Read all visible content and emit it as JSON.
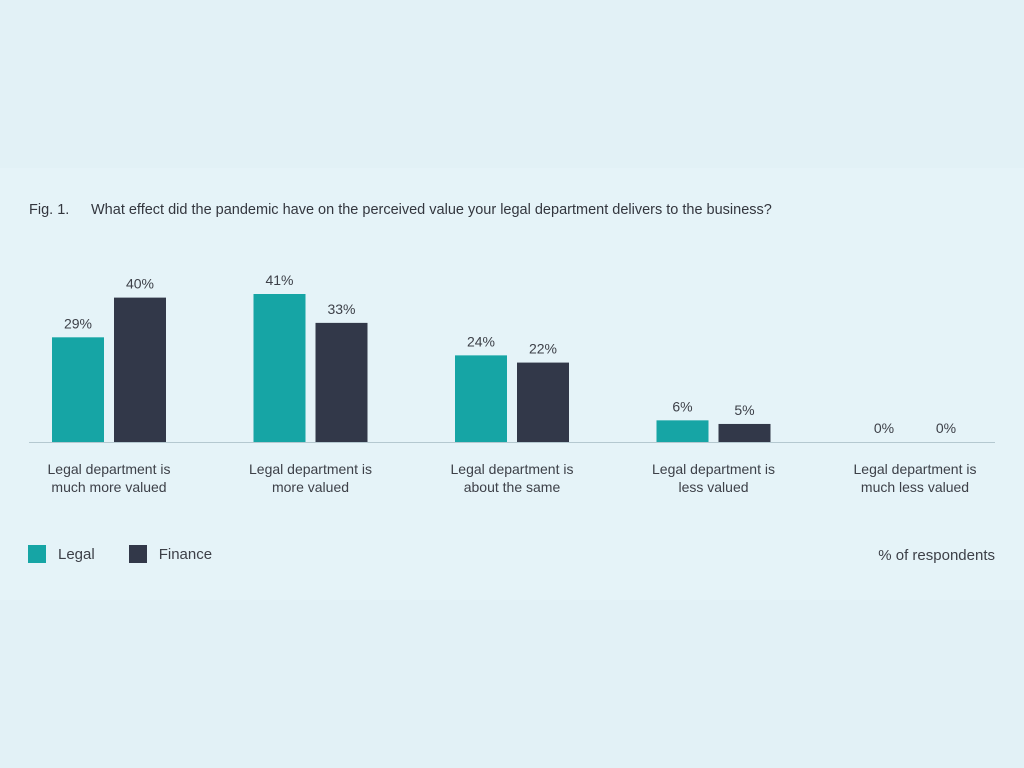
{
  "figure": {
    "number": "Fig. 1.",
    "title": "What effect did the pandemic have on the perceived value your legal department delivers to the business?",
    "unit_note": "% of respondents"
  },
  "colors": {
    "legal": "#16a5a5",
    "finance": "#323849",
    "axis": "#b4c8d0",
    "label": "#3d4048"
  },
  "chart_data": {
    "type": "bar",
    "categories": [
      "Legal department is much more valued",
      "Legal department is more valued",
      "Legal department is about the same",
      "Legal department is less valued",
      "Legal department is much less valued"
    ],
    "category_lines": [
      [
        "Legal department is",
        "much more valued"
      ],
      [
        "Legal department is",
        "more valued"
      ],
      [
        "Legal department is",
        "about the same"
      ],
      [
        "Legal department is",
        "less valued"
      ],
      [
        "Legal department is",
        "much less valued"
      ]
    ],
    "series": [
      {
        "name": "Legal",
        "values": [
          29,
          41,
          24,
          6,
          0
        ]
      },
      {
        "name": "Finance",
        "values": [
          40,
          33,
          22,
          5,
          0
        ]
      }
    ],
    "data_labels": [
      [
        "29%",
        "41%",
        "24%",
        "6%",
        "0%"
      ],
      [
        "40%",
        "33%",
        "22%",
        "5%",
        "0%"
      ]
    ],
    "ylim": [
      0,
      41
    ],
    "legend": "bottom-left",
    "grid": false
  }
}
